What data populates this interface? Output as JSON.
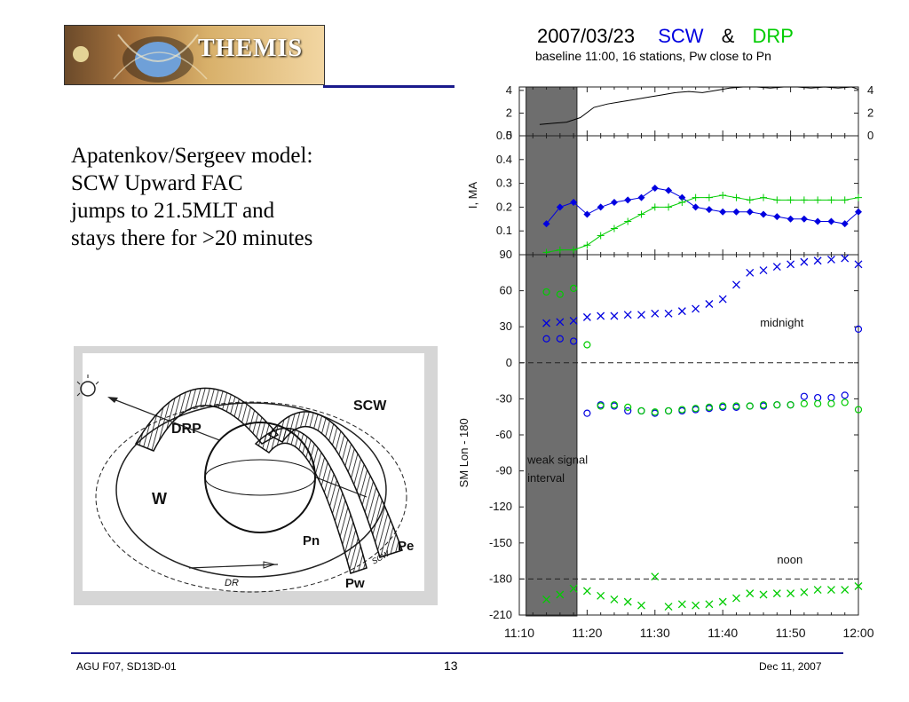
{
  "logo": {
    "text": "THEMIS"
  },
  "left_text": {
    "lines": [
      "Apatenkov/Sergeev model:",
      "SCW Upward FAC",
      "jumps to 21.5MLT and",
      "stays there for >20 minutes"
    ]
  },
  "diagram": {
    "labels": {
      "drp": "DRP",
      "scw": "SCW",
      "w": "W",
      "pn": "Pn",
      "pe": "Pe",
      "pw": "Pw",
      "scw_small": "SCW",
      "dr": "DR"
    }
  },
  "chart_header": {
    "date": "2007/03/23",
    "scw": "SCW",
    "amp": "&",
    "drp": "DRP",
    "subtitle": "baseline 11:00, 16 stations, Pw close to Pn"
  },
  "colors": {
    "scw": "#0000e0",
    "drp": "#00cc00",
    "shade": "#6e6e6e",
    "rule": "#1a1a8c"
  },
  "chart_data": [
    {
      "type": "line",
      "panel": "top",
      "ylim": [
        0,
        4.3
      ],
      "yticks": [
        "4",
        "2",
        "0"
      ],
      "right_yticks": [
        "4",
        "2",
        "0"
      ],
      "series": [
        {
          "color": "black",
          "x": [
            13,
            15,
            17,
            19,
            21,
            23,
            25,
            27,
            29,
            31,
            33,
            35,
            37,
            39,
            41,
            43,
            45,
            47,
            49,
            51,
            53,
            55,
            57,
            59,
            60
          ],
          "y": [
            1.0,
            1.1,
            1.2,
            1.6,
            2.5,
            2.8,
            3.0,
            3.2,
            3.4,
            3.6,
            3.8,
            3.9,
            3.8,
            4.0,
            4.2,
            4.3,
            4.3,
            4.2,
            4.3,
            4.3,
            4.2,
            4.3,
            4.2,
            4.3,
            4.1
          ]
        }
      ]
    },
    {
      "type": "line",
      "panel": "current",
      "ylabel": "I, MA",
      "ylim": [
        0,
        0.5
      ],
      "yticks": [
        "0.5",
        "0.4",
        "0.3",
        "0.2",
        "0.1"
      ],
      "series": [
        {
          "name": "SCW",
          "color": "#0000e0",
          "marker": "diamond",
          "x": [
            14,
            16,
            18,
            20,
            22,
            24,
            26,
            28,
            30,
            32,
            34,
            36,
            38,
            40,
            42,
            44,
            46,
            48,
            50,
            52,
            54,
            56,
            58,
            60
          ],
          "y": [
            0.13,
            0.2,
            0.22,
            0.17,
            0.2,
            0.22,
            0.23,
            0.24,
            0.28,
            0.27,
            0.24,
            0.2,
            0.19,
            0.18,
            0.18,
            0.18,
            0.17,
            0.16,
            0.15,
            0.15,
            0.14,
            0.14,
            0.13,
            0.18
          ]
        },
        {
          "name": "DRP",
          "color": "#00cc00",
          "marker": "plus",
          "x": [
            14,
            16,
            18,
            20,
            22,
            24,
            26,
            28,
            30,
            32,
            34,
            36,
            38,
            40,
            42,
            44,
            46,
            48,
            50,
            52,
            54,
            56,
            58,
            60
          ],
          "y": [
            0.01,
            0.02,
            0.02,
            0.04,
            0.08,
            0.11,
            0.14,
            0.17,
            0.2,
            0.2,
            0.22,
            0.24,
            0.24,
            0.25,
            0.24,
            0.23,
            0.24,
            0.23,
            0.23,
            0.23,
            0.23,
            0.23,
            0.23,
            0.24
          ]
        }
      ]
    },
    {
      "type": "scatter",
      "panel": "longitude",
      "ylabel": "SM Lon - 180",
      "ylim": [
        -210,
        90
      ],
      "yticks": [
        "90",
        "60",
        "30",
        "0",
        "-30",
        "-60",
        "-90",
        "-120",
        "-150",
        "-180",
        "-210"
      ],
      "xticks": [
        "11:10",
        "11:20",
        "11:30",
        "11:40",
        "11:50",
        "12:00"
      ],
      "xlim": [
        10,
        60
      ],
      "hlines": [
        0,
        -180
      ],
      "shaded_interval": [
        11,
        18.5
      ],
      "annotations": {
        "weak_signal": [
          "weak signal",
          "interval"
        ],
        "midnight": "midnight",
        "noon": "noon"
      },
      "series": [
        {
          "name": "SCW upward",
          "color": "#0000e0",
          "marker": "x",
          "x": [
            14,
            16,
            18,
            20,
            22,
            24,
            26,
            28,
            30,
            32,
            34,
            36,
            38,
            40,
            42,
            44,
            46,
            48,
            50,
            52,
            54,
            56,
            58,
            60
          ],
          "y": [
            33,
            34,
            35,
            38,
            39,
            39,
            40,
            40,
            41,
            41,
            43,
            45,
            49,
            53,
            65,
            75,
            77,
            80,
            82,
            84,
            85,
            86,
            87,
            82
          ]
        },
        {
          "name": "SCW downward",
          "color": "#0000e0",
          "marker": "o",
          "x": [
            14,
            16,
            18,
            20,
            22,
            24,
            26,
            28,
            30,
            32,
            34,
            36,
            38,
            40,
            42,
            44,
            46,
            48,
            50,
            52,
            54,
            56,
            58,
            60
          ],
          "y": [
            20,
            20,
            18,
            -42,
            -35,
            -36,
            -40,
            -40,
            -42,
            -40,
            -40,
            -39,
            -38,
            -37,
            -37,
            -36,
            -36,
            -35,
            -35,
            -28,
            -29,
            -29,
            -27,
            28
          ]
        },
        {
          "name": "DRP upward",
          "color": "#00cc00",
          "marker": "o",
          "x": [
            14,
            16,
            18,
            20,
            22,
            24,
            26,
            28,
            30,
            32,
            34,
            36,
            38,
            40,
            42,
            44,
            46,
            48,
            50,
            52,
            54,
            56,
            58,
            60
          ],
          "y": [
            59,
            57,
            62,
            15,
            -36,
            -35,
            -37,
            -40,
            -41,
            -40,
            -39,
            -38,
            -37,
            -36,
            -36,
            -36,
            -35,
            -35,
            -35,
            -34,
            -34,
            -34,
            -33,
            -39
          ]
        },
        {
          "name": "DRP downward",
          "color": "#00cc00",
          "marker": "x",
          "x": [
            14,
            16,
            18,
            20,
            22,
            24,
            26,
            28,
            30,
            32,
            34,
            36,
            38,
            40,
            42,
            44,
            46,
            48,
            50,
            52,
            54,
            56,
            58,
            60
          ],
          "y": [
            -197,
            -193,
            -188,
            -190,
            -194,
            -197,
            -199,
            -202,
            -178,
            -203,
            -201,
            -202,
            -201,
            -199,
            -196,
            -192,
            -193,
            -192,
            -192,
            -191,
            -189,
            -189,
            -189,
            -186
          ]
        }
      ]
    }
  ],
  "footer": {
    "left": "AGU F07, SD13D-01",
    "center": "13",
    "right": "Dec 11, 2007"
  }
}
